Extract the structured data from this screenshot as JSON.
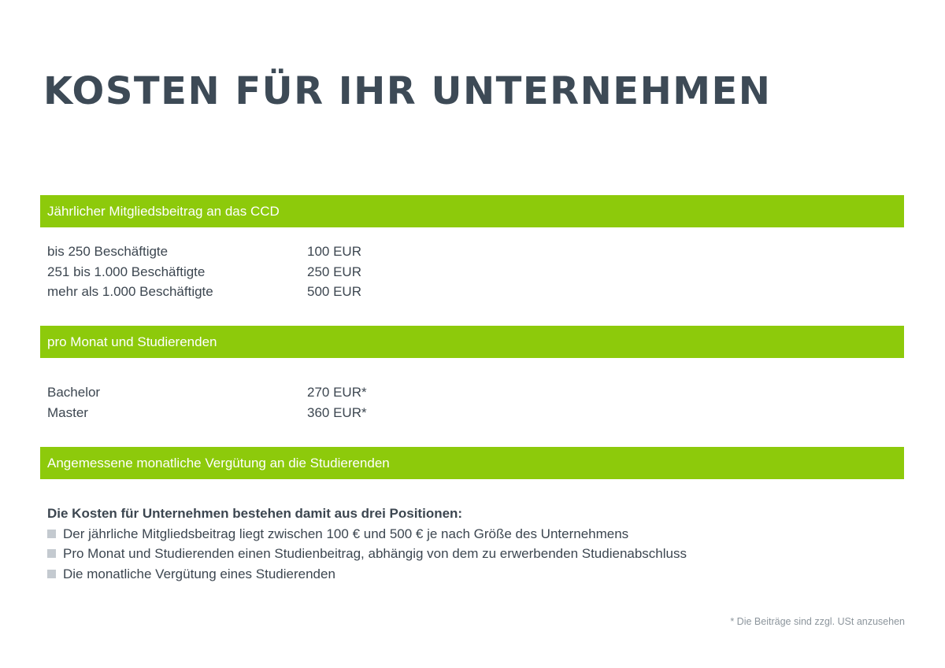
{
  "title": "KOSTEN FÜR IHR UNTERNEHMEN",
  "sections": [
    {
      "header": "Jährlicher Mitgliedsbeitrag an das CCD",
      "rows": [
        {
          "label": "bis 250 Beschäftigte",
          "value": "100 EUR"
        },
        {
          "label": "251 bis 1.000 Beschäftigte",
          "value": "250 EUR"
        },
        {
          "label": "mehr als 1.000 Beschäftigte",
          "value": "500 EUR"
        }
      ]
    },
    {
      "header": "pro Monat und Studierenden",
      "rows": [
        {
          "label": "Bachelor",
          "value": "270 EUR*"
        },
        {
          "label": "Master",
          "value": "360 EUR*"
        }
      ]
    },
    {
      "header": "Angemessene monatliche Vergütung an die Studierenden",
      "rows": []
    }
  ],
  "summary": {
    "intro": "Die Kosten für Unternehmen bestehen damit aus drei Positionen:",
    "bullets": [
      "Der jährliche Mitgliedsbeitrag liegt zwischen 100 € und 500 € je nach Größe des Unternehmens",
      "Pro Monat und Studierenden einen Studienbeitrag, abhängig von dem zu erwerbenden Studienabschluss",
      "Die monatliche Vergütung eines Studierenden"
    ]
  },
  "footnote": "* Die Beiträge sind zzgl. USt anzusehen",
  "colors": {
    "accent_green": "#8dca0b",
    "title_text": "#3d4a56",
    "body_text": "#3c4650",
    "bullet_square": "#c4cad0",
    "footnote_text": "#8c959c"
  }
}
